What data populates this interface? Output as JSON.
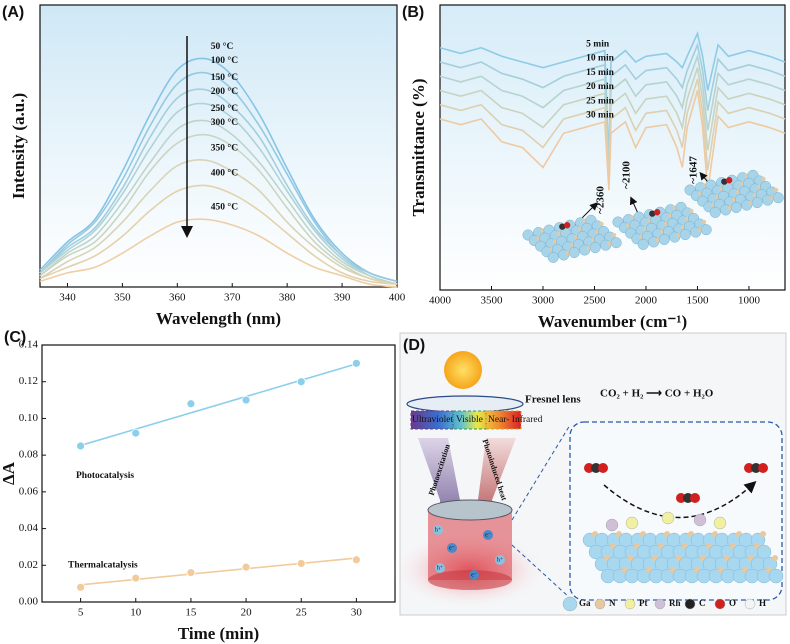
{
  "chart_data": [
    {
      "type": "line",
      "panel_label": "(A)",
      "x_label": "Wavelength (nm)",
      "y_label": "Intensity (a.u.)",
      "x": [
        335,
        340,
        345,
        350,
        355,
        360,
        365,
        370,
        375,
        380,
        385,
        390,
        395,
        400
      ],
      "xlim": [
        335,
        400
      ],
      "xticks": [
        340,
        350,
        360,
        370,
        380,
        390,
        400
      ],
      "ylim": [
        0,
        1
      ],
      "series": [
        {
          "name": "50 °C",
          "color": "#86c4e6",
          "values": [
            0.06,
            0.16,
            0.24,
            0.41,
            0.61,
            0.77,
            0.81,
            0.75,
            0.61,
            0.42,
            0.24,
            0.12,
            0.05,
            0.02
          ]
        },
        {
          "name": "100 °C",
          "color": "#94c9e2",
          "values": [
            0.05,
            0.15,
            0.23,
            0.38,
            0.57,
            0.72,
            0.76,
            0.7,
            0.57,
            0.4,
            0.23,
            0.11,
            0.05,
            0.02
          ]
        },
        {
          "name": "150 °C",
          "color": "#a2cedd",
          "values": [
            0.05,
            0.14,
            0.21,
            0.35,
            0.53,
            0.67,
            0.7,
            0.64,
            0.53,
            0.36,
            0.21,
            0.11,
            0.04,
            0.01
          ]
        },
        {
          "name": "200 °C",
          "color": "#afd2d6",
          "values": [
            0.05,
            0.13,
            0.2,
            0.33,
            0.49,
            0.62,
            0.65,
            0.6,
            0.49,
            0.34,
            0.2,
            0.1,
            0.04,
            0.01
          ]
        },
        {
          "name": "250 °C",
          "color": "#bdd4cd",
          "values": [
            0.04,
            0.12,
            0.18,
            0.3,
            0.44,
            0.56,
            0.59,
            0.54,
            0.44,
            0.31,
            0.18,
            0.09,
            0.04,
            0.01
          ]
        },
        {
          "name": "300 °C",
          "color": "#cad5c2",
          "values": [
            0.04,
            0.11,
            0.16,
            0.27,
            0.41,
            0.51,
            0.54,
            0.5,
            0.41,
            0.28,
            0.16,
            0.08,
            0.03,
            0.01
          ]
        },
        {
          "name": "350 °C",
          "color": "#d8d4b7",
          "values": [
            0.03,
            0.09,
            0.14,
            0.23,
            0.34,
            0.43,
            0.45,
            0.41,
            0.34,
            0.23,
            0.14,
            0.07,
            0.03,
            0.01
          ]
        },
        {
          "name": "400 °C",
          "color": "#e4d1ac",
          "values": [
            0.03,
            0.07,
            0.11,
            0.18,
            0.27,
            0.34,
            0.36,
            0.33,
            0.27,
            0.19,
            0.11,
            0.05,
            0.02,
            0.01
          ]
        },
        {
          "name": "450 °C",
          "color": "#f0cea4",
          "values": [
            0.02,
            0.05,
            0.07,
            0.12,
            0.18,
            0.23,
            0.24,
            0.22,
            0.18,
            0.12,
            0.07,
            0.04,
            0.01,
            0.0
          ]
        }
      ]
    },
    {
      "type": "line",
      "panel_label": "(B)",
      "x_label": "Wavenumber (cm⁻¹)",
      "y_label": "Transmittance (%)",
      "x": [
        4000,
        3800,
        3600,
        3400,
        3200,
        3000,
        2800,
        2600,
        2400,
        2360,
        2340,
        2200,
        2100,
        2000,
        1800,
        1700,
        1647,
        1600,
        1500,
        1450,
        1400,
        1300,
        1200,
        1000,
        800,
        650
      ],
      "xlim": [
        4000,
        650
      ],
      "xticks": [
        4000,
        3500,
        3000,
        2500,
        2000,
        1500,
        1000
      ],
      "ylim": [
        0,
        1
      ],
      "annotations": [
        "~2360",
        "~2100",
        "~1647"
      ],
      "series": [
        {
          "name": "5 min",
          "color": "#8fcbe8",
          "values": [
            0.85,
            0.83,
            0.85,
            0.82,
            0.8,
            0.78,
            0.8,
            0.82,
            0.84,
            0.45,
            0.8,
            0.84,
            0.8,
            0.82,
            0.83,
            0.8,
            0.78,
            0.82,
            0.9,
            0.82,
            0.7,
            0.86,
            0.82,
            0.84,
            0.82,
            0.8
          ]
        },
        {
          "name": "10 min",
          "color": "#a3cfdc",
          "values": [
            0.8,
            0.78,
            0.8,
            0.76,
            0.74,
            0.71,
            0.75,
            0.77,
            0.79,
            0.43,
            0.75,
            0.79,
            0.74,
            0.77,
            0.78,
            0.74,
            0.71,
            0.77,
            0.86,
            0.77,
            0.63,
            0.81,
            0.77,
            0.79,
            0.77,
            0.75
          ]
        },
        {
          "name": "15 min",
          "color": "#b6d3cf",
          "values": [
            0.75,
            0.73,
            0.75,
            0.7,
            0.68,
            0.64,
            0.7,
            0.72,
            0.74,
            0.41,
            0.7,
            0.74,
            0.68,
            0.72,
            0.73,
            0.68,
            0.64,
            0.72,
            0.82,
            0.72,
            0.56,
            0.76,
            0.72,
            0.74,
            0.72,
            0.7
          ]
        },
        {
          "name": "20 min",
          "color": "#c9d3c0",
          "values": [
            0.7,
            0.68,
            0.7,
            0.64,
            0.62,
            0.57,
            0.65,
            0.67,
            0.69,
            0.39,
            0.65,
            0.69,
            0.62,
            0.67,
            0.68,
            0.62,
            0.57,
            0.67,
            0.78,
            0.67,
            0.49,
            0.71,
            0.67,
            0.69,
            0.67,
            0.65
          ]
        },
        {
          "name": "25 min",
          "color": "#dcd0b0",
          "values": [
            0.65,
            0.63,
            0.65,
            0.58,
            0.56,
            0.5,
            0.6,
            0.62,
            0.64,
            0.37,
            0.6,
            0.64,
            0.56,
            0.62,
            0.63,
            0.56,
            0.5,
            0.62,
            0.74,
            0.62,
            0.42,
            0.66,
            0.62,
            0.64,
            0.62,
            0.6
          ]
        },
        {
          "name": "30 min",
          "color": "#efc9a0",
          "values": [
            0.6,
            0.58,
            0.6,
            0.52,
            0.5,
            0.43,
            0.55,
            0.57,
            0.59,
            0.35,
            0.55,
            0.59,
            0.5,
            0.57,
            0.58,
            0.5,
            0.43,
            0.57,
            0.7,
            0.57,
            0.35,
            0.61,
            0.57,
            0.59,
            0.57,
            0.55
          ]
        }
      ]
    },
    {
      "type": "scatter",
      "panel_label": "(C)",
      "x_label": "Time (min)",
      "y_label": "ΔA",
      "x": [
        5,
        10,
        15,
        20,
        25,
        30
      ],
      "xlim": [
        1.5,
        33.5
      ],
      "xticks": [
        5,
        10,
        15,
        20,
        25,
        30
      ],
      "ylim": [
        0,
        0.14
      ],
      "yticks": [
        {
          "value": 0,
          "label": "0.00"
        },
        0.02,
        0.04,
        0.06,
        0.08,
        {
          "value": 0.1,
          "label": "0.10"
        },
        0.12,
        0.14
      ],
      "series": [
        {
          "name": "Photocatalysis",
          "color": "#8ccfea",
          "values": [
            0.085,
            0.092,
            0.108,
            0.11,
            0.12,
            0.13
          ]
        },
        {
          "name": "Thermalcatalysis",
          "color": "#f2cb9c",
          "values": [
            0.008,
            0.013,
            0.016,
            0.019,
            0.021,
            0.023
          ]
        }
      ]
    }
  ],
  "scheme": {
    "panel_label": "(D)",
    "lens": "Fresnel lens",
    "reaction": "CO₂ + H₂ ⟶ CO + H₂O",
    "spectrum": [
      "Ultraviolet",
      "Visible",
      "Near- Infrared"
    ],
    "arrows": [
      "Photoexcitation",
      "Photoinduced heat"
    ],
    "carriers": [
      "h⁺",
      "e⁻"
    ],
    "legend": [
      "Ga",
      "N",
      "Pt",
      "Rh",
      "C",
      "O",
      "H"
    ]
  }
}
